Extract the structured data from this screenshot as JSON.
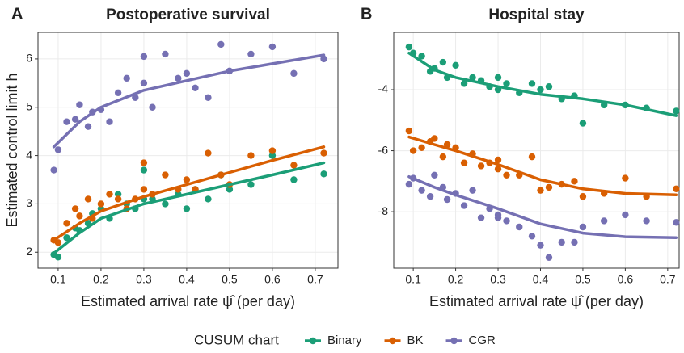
{
  "chart_data": [
    {
      "type": "scatter",
      "tag": "A",
      "title": "Postoperative survival",
      "xlabel": "Estimated arrival rate ψ̂ (per day)",
      "ylabel": "Estimated control limit h",
      "xlim": [
        0.053,
        0.753
      ],
      "ylim": [
        1.67,
        6.55
      ],
      "xticks": [
        0.1,
        0.2,
        0.3,
        0.4,
        0.5,
        0.6,
        0.7
      ],
      "yticks": [
        2,
        3,
        4,
        5,
        6
      ],
      "grid": true,
      "x": [
        0.09,
        0.1,
        0.12,
        0.14,
        0.15,
        0.17,
        0.18,
        0.2,
        0.22,
        0.24,
        0.26,
        0.28,
        0.3,
        0.3,
        0.32,
        0.35,
        0.38,
        0.4,
        0.42,
        0.45,
        0.48,
        0.5,
        0.55,
        0.6,
        0.65,
        0.72
      ],
      "fit_x": [
        0.09,
        0.15,
        0.2,
        0.3,
        0.4,
        0.5,
        0.6,
        0.72
      ],
      "series": [
        {
          "name": "Binary",
          "color": "#1b9e77",
          "values": [
            1.95,
            1.9,
            2.3,
            2.5,
            2.45,
            2.6,
            2.8,
            2.9,
            2.7,
            3.2,
            3.0,
            2.9,
            3.7,
            3.1,
            3.1,
            3.0,
            3.2,
            2.9,
            3.3,
            3.1,
            3.6,
            3.3,
            3.4,
            4.0,
            3.5,
            3.62
          ],
          "fit": [
            1.98,
            2.4,
            2.7,
            3.0,
            3.2,
            3.4,
            3.6,
            3.85
          ]
        },
        {
          "name": "BK",
          "color": "#d95f02",
          "values": [
            2.25,
            2.2,
            2.6,
            2.9,
            2.75,
            3.1,
            2.7,
            3.0,
            3.2,
            3.1,
            2.9,
            3.1,
            3.85,
            3.3,
            3.2,
            3.6,
            3.3,
            3.5,
            3.3,
            4.05,
            3.6,
            3.4,
            4.0,
            4.1,
            3.8,
            4.05
          ],
          "fit": [
            2.25,
            2.6,
            2.85,
            3.15,
            3.4,
            3.65,
            3.9,
            4.18
          ]
        },
        {
          "name": "CGR",
          "color": "#7570b3",
          "values": [
            3.7,
            4.12,
            4.7,
            4.75,
            5.05,
            4.6,
            4.9,
            4.95,
            4.7,
            5.3,
            5.6,
            5.2,
            6.05,
            5.5,
            5.0,
            6.1,
            5.6,
            5.7,
            5.4,
            5.2,
            6.3,
            5.75,
            6.1,
            6.25,
            5.7,
            6.0
          ],
          "fit": [
            4.18,
            4.7,
            5.0,
            5.35,
            5.55,
            5.75,
            5.9,
            6.08
          ]
        }
      ]
    },
    {
      "type": "scatter",
      "tag": "B",
      "title": "Hospital stay",
      "xlabel": "Estimated arrival rate ψ̂ (per day)",
      "xlim": [
        0.054,
        0.727
      ],
      "ylim": [
        -9.85,
        -2.12
      ],
      "xticks": [
        0.1,
        0.2,
        0.3,
        0.4,
        0.5,
        0.6,
        0.7
      ],
      "yticks": [
        -8,
        -6,
        -4
      ],
      "grid": true,
      "x": [
        0.09,
        0.1,
        0.12,
        0.14,
        0.15,
        0.17,
        0.18,
        0.2,
        0.22,
        0.24,
        0.26,
        0.28,
        0.3,
        0.3,
        0.32,
        0.35,
        0.38,
        0.4,
        0.42,
        0.45,
        0.48,
        0.5,
        0.55,
        0.6,
        0.65,
        0.72
      ],
      "fit_x": [
        0.09,
        0.15,
        0.2,
        0.3,
        0.4,
        0.5,
        0.6,
        0.72
      ],
      "series": [
        {
          "name": "Binary",
          "color": "#1b9e77",
          "values": [
            -2.6,
            -2.8,
            -2.9,
            -3.4,
            -3.3,
            -3.1,
            -3.6,
            -3.2,
            -3.8,
            -3.6,
            -3.7,
            -3.9,
            -3.6,
            -4.0,
            -3.8,
            -4.1,
            -3.8,
            -4.0,
            -3.9,
            -4.3,
            -4.2,
            -5.1,
            -4.5,
            -4.5,
            -4.6,
            -4.7
          ],
          "fit": [
            -2.8,
            -3.35,
            -3.6,
            -3.9,
            -4.15,
            -4.3,
            -4.5,
            -4.85
          ]
        },
        {
          "name": "BK",
          "color": "#d95f02",
          "values": [
            -5.35,
            -6.0,
            -5.9,
            -5.7,
            -5.6,
            -6.2,
            -5.8,
            -5.9,
            -6.4,
            -6.1,
            -6.5,
            -6.4,
            -6.6,
            -6.3,
            -6.8,
            -6.8,
            -6.2,
            -7.3,
            -7.2,
            -7.1,
            -7.0,
            -7.5,
            -7.4,
            -6.9,
            -7.5,
            -7.25
          ],
          "fit": [
            -5.55,
            -5.8,
            -6.0,
            -6.45,
            -6.95,
            -7.25,
            -7.4,
            -7.45
          ]
        },
        {
          "name": "CGR",
          "color": "#7570b3",
          "values": [
            -7.1,
            -6.9,
            -7.3,
            -7.5,
            -6.8,
            -7.2,
            -7.6,
            -7.4,
            -7.8,
            -7.3,
            -8.2,
            -7.9,
            -8.1,
            -8.2,
            -8.3,
            -8.5,
            -8.8,
            -9.1,
            -9.5,
            -9.0,
            -9.0,
            -8.5,
            -8.3,
            -8.1,
            -8.3,
            -8.35
          ],
          "fit": [
            -6.85,
            -7.2,
            -7.45,
            -7.9,
            -8.4,
            -8.7,
            -8.82,
            -8.85
          ]
        }
      ]
    }
  ],
  "legend_title": "CUSUM chart"
}
